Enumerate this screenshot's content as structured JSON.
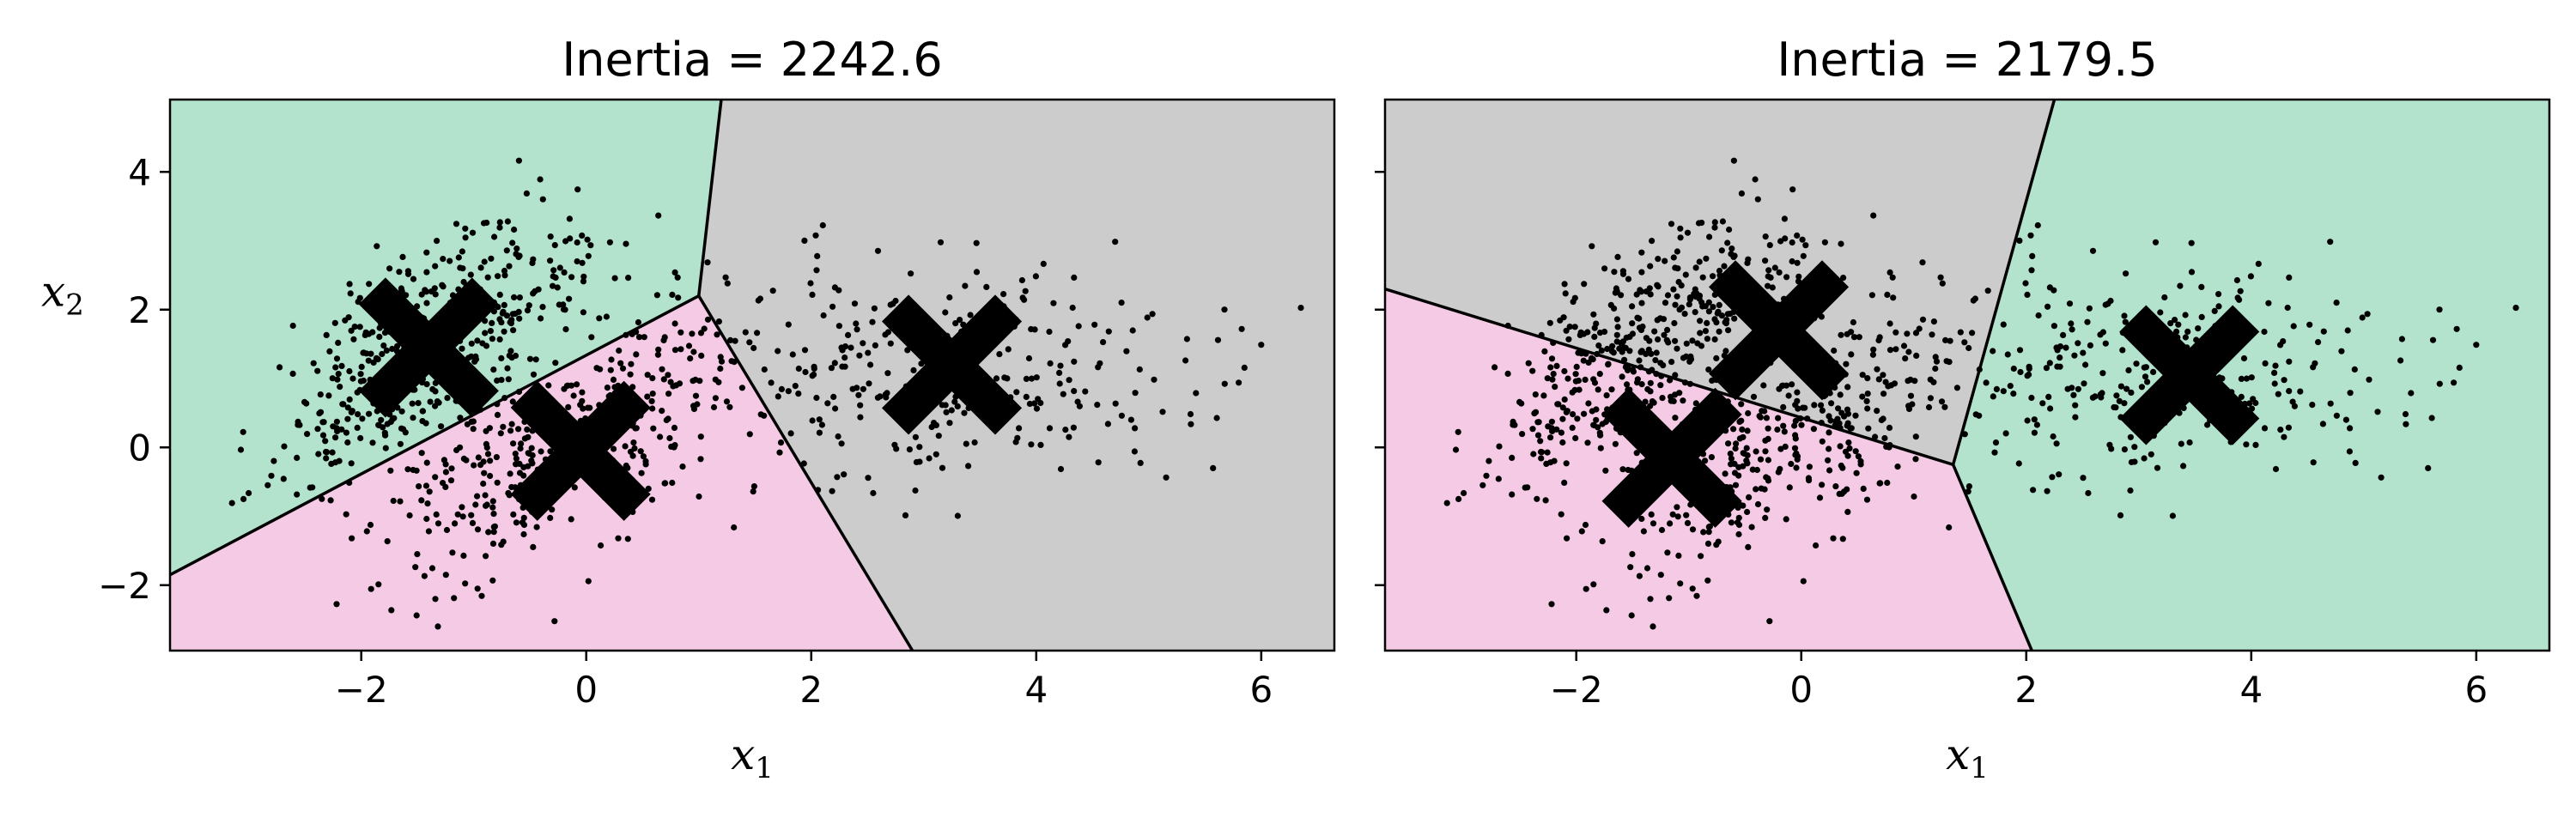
{
  "figure": {
    "background": "#ffffff",
    "region_colors": {
      "green": "#b3e2cd",
      "pink": "#f4cae4",
      "gray": "#cccccc"
    }
  },
  "chart_data": [
    {
      "type": "scatter",
      "title": "Inertia = 2242.6",
      "xlabel": "x",
      "xlabel_sub": "1",
      "ylabel": "x",
      "ylabel_sub": "2",
      "xlim": [
        -3.7,
        6.65
      ],
      "ylim": [
        -2.95,
        5.05
      ],
      "xticks": [
        {
          "value": -2,
          "label": "−2"
        },
        {
          "value": 0,
          "label": "0"
        },
        {
          "value": 2,
          "label": "2"
        },
        {
          "value": 4,
          "label": "4"
        },
        {
          "value": 6,
          "label": "6"
        }
      ],
      "yticks": [
        {
          "value": -2,
          "label": "−2"
        },
        {
          "value": 0,
          "label": "0"
        },
        {
          "value": 2,
          "label": "2"
        },
        {
          "value": 4,
          "label": "4"
        }
      ],
      "show_ytick_labels": true,
      "grid": false,
      "centroids": [
        {
          "x": -1.4,
          "y": 1.45
        },
        {
          "x": -0.05,
          "y": -0.05
        },
        {
          "x": 3.25,
          "y": 1.2
        }
      ],
      "regions": [
        {
          "color": "green",
          "vertices": [
            [
              -3.7,
              5.05
            ],
            [
              1.2,
              5.05
            ],
            [
              1.0,
              2.2
            ],
            [
              -3.7,
              -1.85
            ]
          ]
        },
        {
          "color": "pink",
          "vertices": [
            [
              -3.7,
              -1.85
            ],
            [
              1.0,
              2.2
            ],
            [
              2.9,
              -2.95
            ],
            [
              -3.7,
              -2.95
            ]
          ]
        },
        {
          "color": "gray",
          "vertices": [
            [
              1.2,
              5.05
            ],
            [
              6.65,
              5.05
            ],
            [
              6.65,
              -2.95
            ],
            [
              2.9,
              -2.95
            ],
            [
              1.0,
              2.2
            ]
          ]
        }
      ],
      "boundaries": [
        [
          [
            -3.7,
            -1.85
          ],
          [
            1.0,
            2.2
          ]
        ],
        [
          [
            1.0,
            2.2
          ],
          [
            1.2,
            5.05
          ]
        ],
        [
          [
            1.0,
            2.2
          ],
          [
            2.9,
            -2.95
          ]
        ]
      ]
    },
    {
      "type": "scatter",
      "title": "Inertia = 2179.5",
      "xlabel": "x",
      "xlabel_sub": "1",
      "ylabel": "",
      "ylabel_sub": "",
      "xlim": [
        -3.7,
        6.65
      ],
      "ylim": [
        -2.95,
        5.05
      ],
      "xticks": [
        {
          "value": -2,
          "label": "−2"
        },
        {
          "value": 0,
          "label": "0"
        },
        {
          "value": 2,
          "label": "2"
        },
        {
          "value": 4,
          "label": "4"
        },
        {
          "value": 6,
          "label": "6"
        }
      ],
      "yticks": [
        {
          "value": -2,
          "label": ""
        },
        {
          "value": 0,
          "label": ""
        },
        {
          "value": 2,
          "label": ""
        },
        {
          "value": 4,
          "label": ""
        }
      ],
      "show_ytick_labels": false,
      "grid": false,
      "centroids": [
        {
          "x": -0.2,
          "y": 1.7
        },
        {
          "x": -1.15,
          "y": -0.15
        },
        {
          "x": 3.45,
          "y": 1.05
        }
      ],
      "regions": [
        {
          "color": "gray",
          "vertices": [
            [
              -3.7,
              5.05
            ],
            [
              2.25,
              5.05
            ],
            [
              1.35,
              -0.25
            ],
            [
              -3.7,
              2.3
            ]
          ]
        },
        {
          "color": "pink",
          "vertices": [
            [
              -3.7,
              2.3
            ],
            [
              1.35,
              -0.25
            ],
            [
              2.05,
              -2.95
            ],
            [
              -3.7,
              -2.95
            ]
          ]
        },
        {
          "color": "green",
          "vertices": [
            [
              2.25,
              5.05
            ],
            [
              6.65,
              5.05
            ],
            [
              6.65,
              -2.95
            ],
            [
              2.05,
              -2.95
            ],
            [
              1.35,
              -0.25
            ]
          ]
        }
      ],
      "boundaries": [
        [
          [
            -3.7,
            2.3
          ],
          [
            1.35,
            -0.25
          ]
        ],
        [
          [
            1.35,
            -0.25
          ],
          [
            2.25,
            5.05
          ]
        ],
        [
          [
            1.35,
            -0.25
          ],
          [
            2.05,
            -2.95
          ]
        ]
      ]
    }
  ],
  "scatter_points": {
    "clusters": [
      {
        "cx": -1.45,
        "cy": 1.45,
        "sx": 0.75,
        "sy": 0.95,
        "rho": 0.7,
        "n": 420
      },
      {
        "cx": -0.2,
        "cy": 0.05,
        "sx": 0.85,
        "sy": 1.05,
        "rho": 0.65,
        "n": 380
      },
      {
        "cx": 3.2,
        "cy": 1.05,
        "sx": 1.2,
        "sy": 0.85,
        "rho": 0.15,
        "n": 300
      }
    ],
    "seed": 42
  }
}
